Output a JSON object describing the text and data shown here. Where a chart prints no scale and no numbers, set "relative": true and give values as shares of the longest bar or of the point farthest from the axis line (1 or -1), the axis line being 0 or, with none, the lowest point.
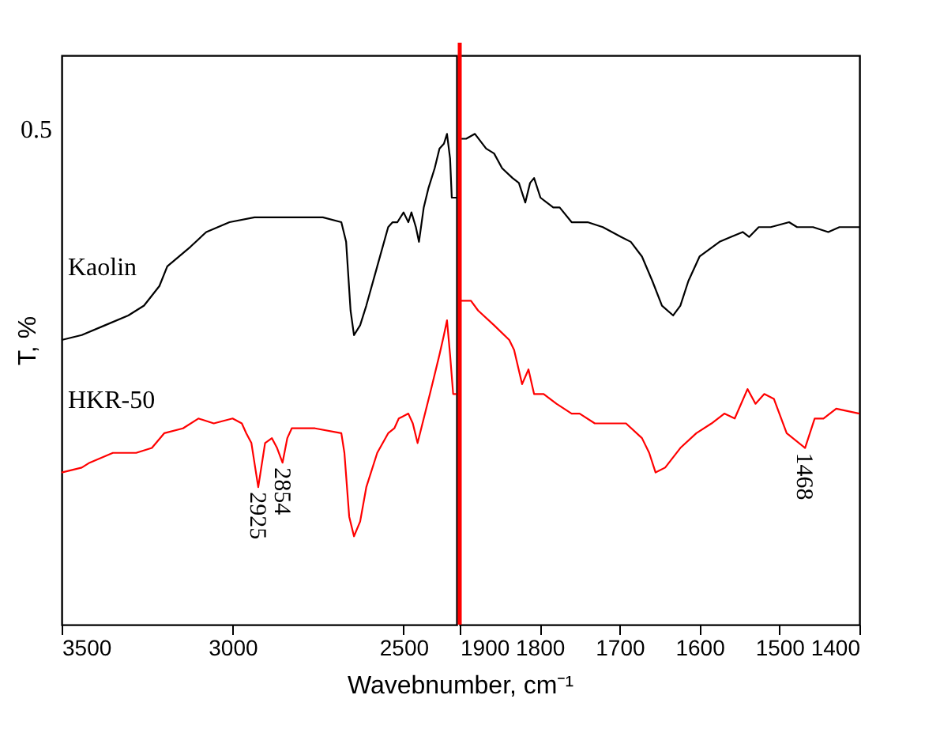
{
  "chart_data": [
    {
      "type": "line",
      "relative": true,
      "ylabel": "T, %",
      "tick_labels": "x",
      "xlim": [
        3500,
        2345
      ],
      "xticks": [
        3500,
        3000,
        2500
      ],
      "annotations": [
        "0.5",
        {
          "text": "2925",
          "x": 2925,
          "y": 0.28
        },
        {
          "text": "2854",
          "x": 2854,
          "y": 0.33
        }
      ],
      "series": [
        {
          "name": "Kaolin",
          "color": "#000000",
          "x": [
            3500,
            3441,
            3373,
            3305,
            3259,
            3214,
            3191,
            3123,
            3077,
            3009,
            2936,
            2873,
            2736,
            2682,
            2668,
            2655,
            2645,
            2627,
            2609,
            2577,
            2545,
            2532,
            2518,
            2500,
            2486,
            2477,
            2464,
            2455,
            2441,
            2427,
            2409,
            2395,
            2382,
            2373,
            2364,
            2359,
            2345
          ],
          "values": [
            0.58,
            0.59,
            0.61,
            0.63,
            0.65,
            0.69,
            0.73,
            0.77,
            0.8,
            0.82,
            0.83,
            0.83,
            0.83,
            0.82,
            0.78,
            0.64,
            0.59,
            0.61,
            0.65,
            0.73,
            0.81,
            0.82,
            0.82,
            0.84,
            0.82,
            0.84,
            0.81,
            0.78,
            0.85,
            0.89,
            0.93,
            0.97,
            0.98,
            1.0,
            0.95,
            0.87,
            0.87
          ]
        },
        {
          "name": "HKR-50",
          "color": "#ff0000",
          "x": [
            3500,
            3441,
            3418,
            3350,
            3282,
            3236,
            3200,
            3145,
            3100,
            3055,
            3000,
            2973,
            2960,
            2945,
            2925,
            2905,
            2885,
            2870,
            2854,
            2840,
            2827,
            2759,
            2682,
            2673,
            2659,
            2645,
            2627,
            2609,
            2577,
            2545,
            2527,
            2514,
            2486,
            2473,
            2459,
            2441,
            2423,
            2409,
            2395,
            2382,
            2373,
            2364,
            2355,
            2345
          ],
          "values": [
            0.31,
            0.32,
            0.33,
            0.35,
            0.35,
            0.36,
            0.39,
            0.4,
            0.42,
            0.41,
            0.42,
            0.41,
            0.39,
            0.37,
            0.28,
            0.37,
            0.38,
            0.36,
            0.33,
            0.38,
            0.4,
            0.4,
            0.39,
            0.35,
            0.22,
            0.18,
            0.21,
            0.28,
            0.35,
            0.39,
            0.4,
            0.42,
            0.43,
            0.41,
            0.37,
            0.42,
            0.47,
            0.51,
            0.55,
            0.59,
            0.62,
            0.55,
            0.47,
            0.47
          ]
        }
      ]
    },
    {
      "type": "line",
      "relative": true,
      "xlabel": "Wavebnumber, cm⁻¹",
      "tick_labels": "x",
      "xlim": [
        1900,
        1400
      ],
      "xticks": [
        1900,
        1800,
        1700,
        1600,
        1500,
        1400
      ],
      "ref_lines": [
        {
          "axis": "x",
          "value": 1900,
          "color": "#ff0000"
        }
      ],
      "annotations": [
        {
          "text": "1468",
          "x": 1468,
          "y": 0.36
        }
      ],
      "series": [
        {
          "color": "#000000",
          "x": [
            1900,
            1892,
            1881,
            1867,
            1857,
            1847,
            1834,
            1826,
            1818,
            1812,
            1807,
            1799,
            1783,
            1775,
            1760,
            1740,
            1721,
            1698,
            1686,
            1672,
            1659,
            1647,
            1633,
            1624,
            1614,
            1600,
            1575,
            1561,
            1546,
            1538,
            1526,
            1511,
            1488,
            1478,
            1458,
            1439,
            1425,
            1400
          ],
          "values": [
            0.99,
            0.99,
            1.0,
            0.97,
            0.96,
            0.93,
            0.91,
            0.9,
            0.86,
            0.9,
            0.91,
            0.87,
            0.85,
            0.85,
            0.82,
            0.82,
            0.81,
            0.79,
            0.78,
            0.75,
            0.7,
            0.65,
            0.63,
            0.65,
            0.7,
            0.75,
            0.78,
            0.79,
            0.8,
            0.79,
            0.81,
            0.81,
            0.82,
            0.81,
            0.81,
            0.8,
            0.81,
            0.81
          ]
        },
        {
          "color": "#ff0000",
          "x": [
            1900,
            1892,
            1886,
            1877,
            1857,
            1838,
            1832,
            1822,
            1814,
            1807,
            1795,
            1779,
            1760,
            1750,
            1731,
            1711,
            1692,
            1672,
            1663,
            1655,
            1643,
            1624,
            1604,
            1585,
            1569,
            1556,
            1540,
            1530,
            1519,
            1507,
            1491,
            1468,
            1456,
            1445,
            1429,
            1400
          ],
          "values": [
            0.66,
            0.66,
            0.66,
            0.64,
            0.61,
            0.58,
            0.56,
            0.49,
            0.52,
            0.47,
            0.47,
            0.45,
            0.43,
            0.43,
            0.41,
            0.41,
            0.41,
            0.38,
            0.35,
            0.31,
            0.32,
            0.36,
            0.39,
            0.41,
            0.43,
            0.42,
            0.48,
            0.45,
            0.47,
            0.46,
            0.39,
            0.36,
            0.42,
            0.42,
            0.44,
            0.43
          ]
        }
      ]
    }
  ]
}
